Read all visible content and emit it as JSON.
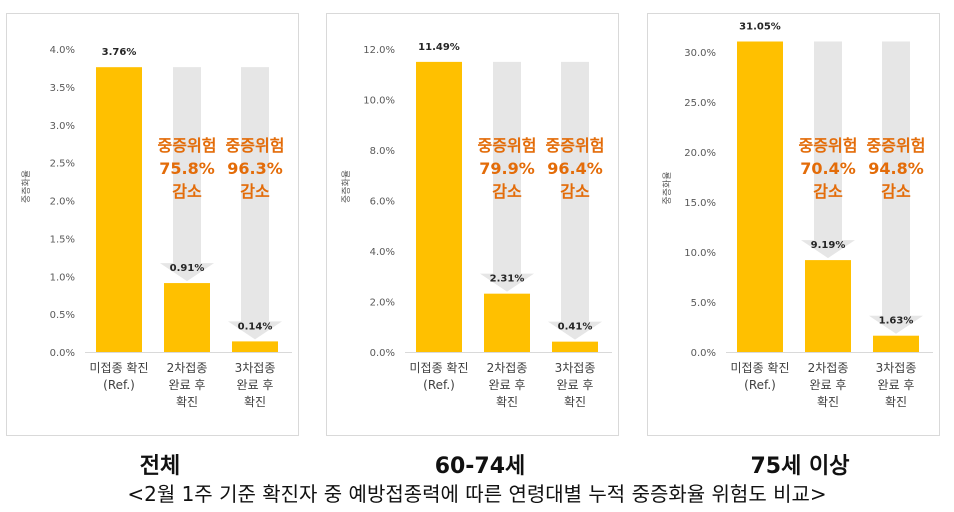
{
  "footer": "<2월 1주 기준 확진자 중 예방접종력에 따른 연령대별 누적 중증화율 위험도 비교>",
  "colors": {
    "bar": "#FFC000",
    "arrow": "#E6E6E6",
    "reduction_text": "#E36C09",
    "axis_text": "#595959",
    "grid": "#D9D9D9"
  },
  "chart_data": [
    {
      "type": "bar",
      "group_label": "전체",
      "ylabel": "중증화율",
      "ylim": [
        0,
        4.0
      ],
      "y_ticks": [
        "0.0%",
        "0.5%",
        "1.0%",
        "1.5%",
        "2.0%",
        "2.5%",
        "3.0%",
        "3.5%",
        "4.0%"
      ],
      "categories": [
        [
          "미접종 확진",
          "(Ref.)"
        ],
        [
          "2차접종",
          "완료 후",
          "확진"
        ],
        [
          "3차접종",
          "완료 후",
          "확진"
        ]
      ],
      "values": [
        3.76,
        0.91,
        0.14
      ],
      "value_labels": [
        "3.76%",
        "0.91%",
        "0.14%"
      ],
      "reductions": [
        {
          "bar": 1,
          "lines": [
            "중증위험",
            "75.8%",
            "감소"
          ]
        },
        {
          "bar": 2,
          "lines": [
            "중증위험",
            "96.3%",
            "감소"
          ]
        }
      ]
    },
    {
      "type": "bar",
      "group_label": "60-74세",
      "ylabel": "중증화율",
      "ylim": [
        0,
        12.0
      ],
      "y_ticks": [
        "0.0%",
        "2.0%",
        "4.0%",
        "6.0%",
        "8.0%",
        "10.0%",
        "12.0%"
      ],
      "categories": [
        [
          "미접종 확진",
          "(Ref.)"
        ],
        [
          "2차접종",
          "완료 후",
          "확진"
        ],
        [
          "3차접종",
          "완료 후",
          "확진"
        ]
      ],
      "values": [
        11.49,
        2.31,
        0.41
      ],
      "value_labels": [
        "11.49%",
        "2.31%",
        "0.41%"
      ],
      "reductions": [
        {
          "bar": 1,
          "lines": [
            "중증위험",
            "79.9%",
            "감소"
          ]
        },
        {
          "bar": 2,
          "lines": [
            "중증위험",
            "96.4%",
            "감소"
          ]
        }
      ]
    },
    {
      "type": "bar",
      "group_label": "75세 이상",
      "ylabel": "중증화율",
      "ylim": [
        0,
        30.0
      ],
      "y_ticks": [
        "0.0%",
        "5.0%",
        "10.0%",
        "15.0%",
        "20.0%",
        "25.0%",
        "30.0%"
      ],
      "categories": [
        [
          "미접종 확진",
          "(Ref.)"
        ],
        [
          "2차접종",
          "완료 후",
          "확진"
        ],
        [
          "3차접종",
          "완료 후",
          "확진"
        ]
      ],
      "values": [
        31.05,
        9.19,
        1.63
      ],
      "value_labels": [
        "31.05%",
        "9.19%",
        "1.63%"
      ],
      "reductions": [
        {
          "bar": 1,
          "lines": [
            "중증위험",
            "70.4%",
            "감소"
          ]
        },
        {
          "bar": 2,
          "lines": [
            "중증위험",
            "94.8%",
            "감소"
          ]
        }
      ]
    }
  ]
}
